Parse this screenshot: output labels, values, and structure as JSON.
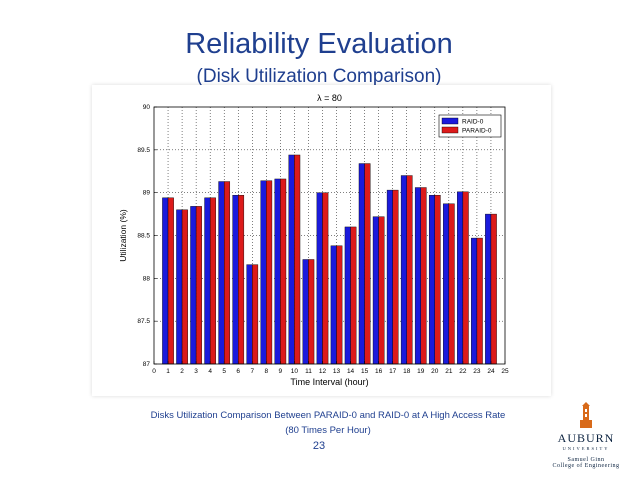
{
  "slide": {
    "title": "Reliability Evaluation",
    "subtitle": "(Disk Utilization Comparison)",
    "caption_line1": "Disks Utilization Comparison Between PARAID-0 and RAID-0 at A High Access Rate",
    "caption_line2": "(80 Times Per Hour)",
    "page_number": "23",
    "logo": {
      "name": "AUBURN",
      "university": "UNIVERSITY",
      "line1": "Samuel Ginn",
      "line2": "College of Engineering"
    }
  },
  "colors": {
    "raid": "#1a1adc",
    "paraid": "#dc1a1a",
    "accent": "#1f3f8f"
  },
  "chart_data": {
    "type": "bar",
    "title": "λ = 80",
    "xlabel": "Time Interval (hour)",
    "ylabel": "Utilization (%)",
    "xlim": [
      0,
      25
    ],
    "ylim": [
      87,
      90
    ],
    "xticks": [
      "0",
      "1",
      "2",
      "3",
      "4",
      "5",
      "6",
      "7",
      "8",
      "9",
      "10",
      "11",
      "12",
      "13",
      "14",
      "15",
      "16",
      "17",
      "18",
      "19",
      "20",
      "21",
      "22",
      "23",
      "24",
      "25"
    ],
    "yticks": [
      "87",
      "87.5",
      "88",
      "88.5",
      "89",
      "89.5",
      "90"
    ],
    "grid": "dotted, major",
    "legend": "top-right",
    "categories": [
      1,
      2,
      3,
      4,
      5,
      6,
      7,
      8,
      9,
      10,
      11,
      12,
      13,
      14,
      15,
      16,
      17,
      18,
      19,
      20,
      21,
      22,
      23,
      24
    ],
    "series": [
      {
        "name": "RAID-0",
        "color": "#1a1adc",
        "values": [
          88.94,
          88.8,
          88.84,
          88.94,
          89.13,
          88.97,
          88.16,
          89.14,
          89.16,
          89.44,
          88.22,
          89.0,
          88.38,
          88.6,
          89.34,
          88.72,
          89.03,
          89.2,
          89.06,
          88.97,
          88.87,
          89.01,
          88.47,
          88.75
        ]
      },
      {
        "name": "PARAID-0",
        "color": "#dc1a1a",
        "values": [
          88.94,
          88.8,
          88.84,
          88.94,
          89.13,
          88.97,
          88.16,
          89.14,
          89.16,
          89.44,
          88.22,
          89.0,
          88.38,
          88.6,
          89.34,
          88.72,
          89.03,
          89.2,
          89.06,
          88.97,
          88.87,
          89.01,
          88.47,
          88.75
        ]
      }
    ]
  }
}
